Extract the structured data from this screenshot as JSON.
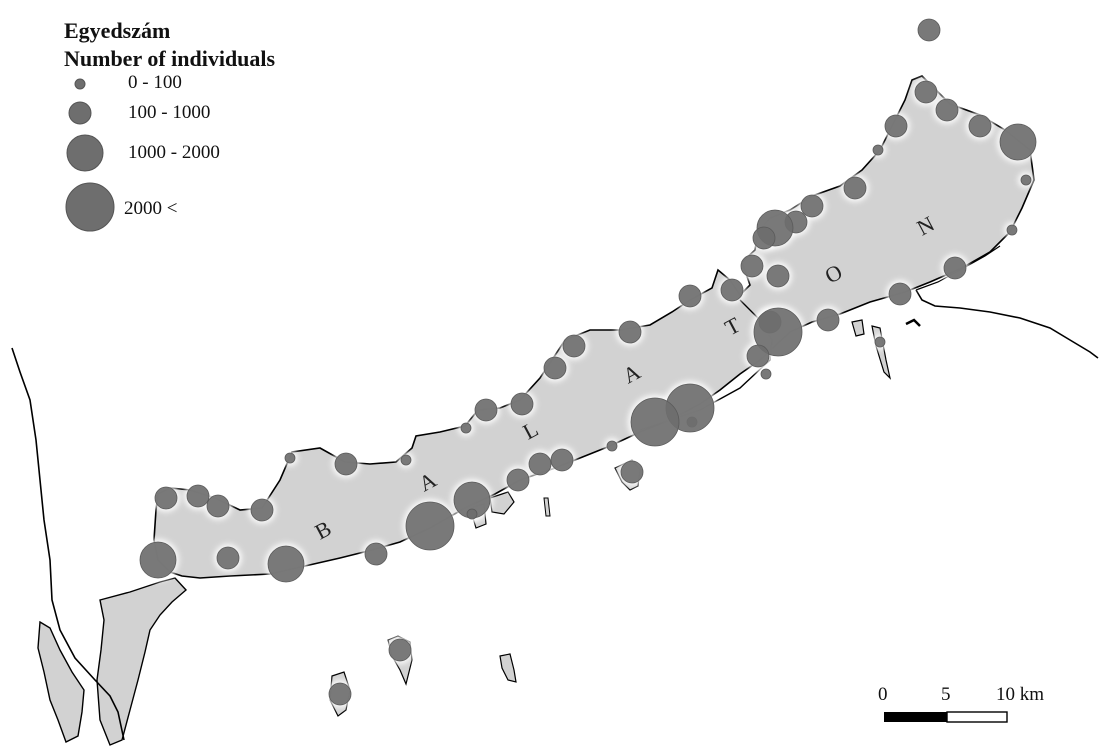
{
  "legend": {
    "title_hu": "Egyedszám",
    "title_en": "Number of individuals",
    "classes": [
      {
        "label": "0 - 100"
      },
      {
        "label": "100 - 1000"
      },
      {
        "label": "1000 - 2000"
      },
      {
        "label": "2000 <"
      }
    ]
  },
  "lake_name_letters": [
    "B",
    "A",
    "L",
    "A",
    "T",
    "O",
    "N"
  ],
  "scale_bar": {
    "labels": [
      "0",
      "5",
      "10 km"
    ],
    "values_km": [
      0,
      5,
      10
    ]
  },
  "colors": {
    "lake_fill": "#d2d2d2",
    "symbol_fill": "#6e6e6e",
    "shoreline": "#000000",
    "background": "#ffffff"
  }
}
